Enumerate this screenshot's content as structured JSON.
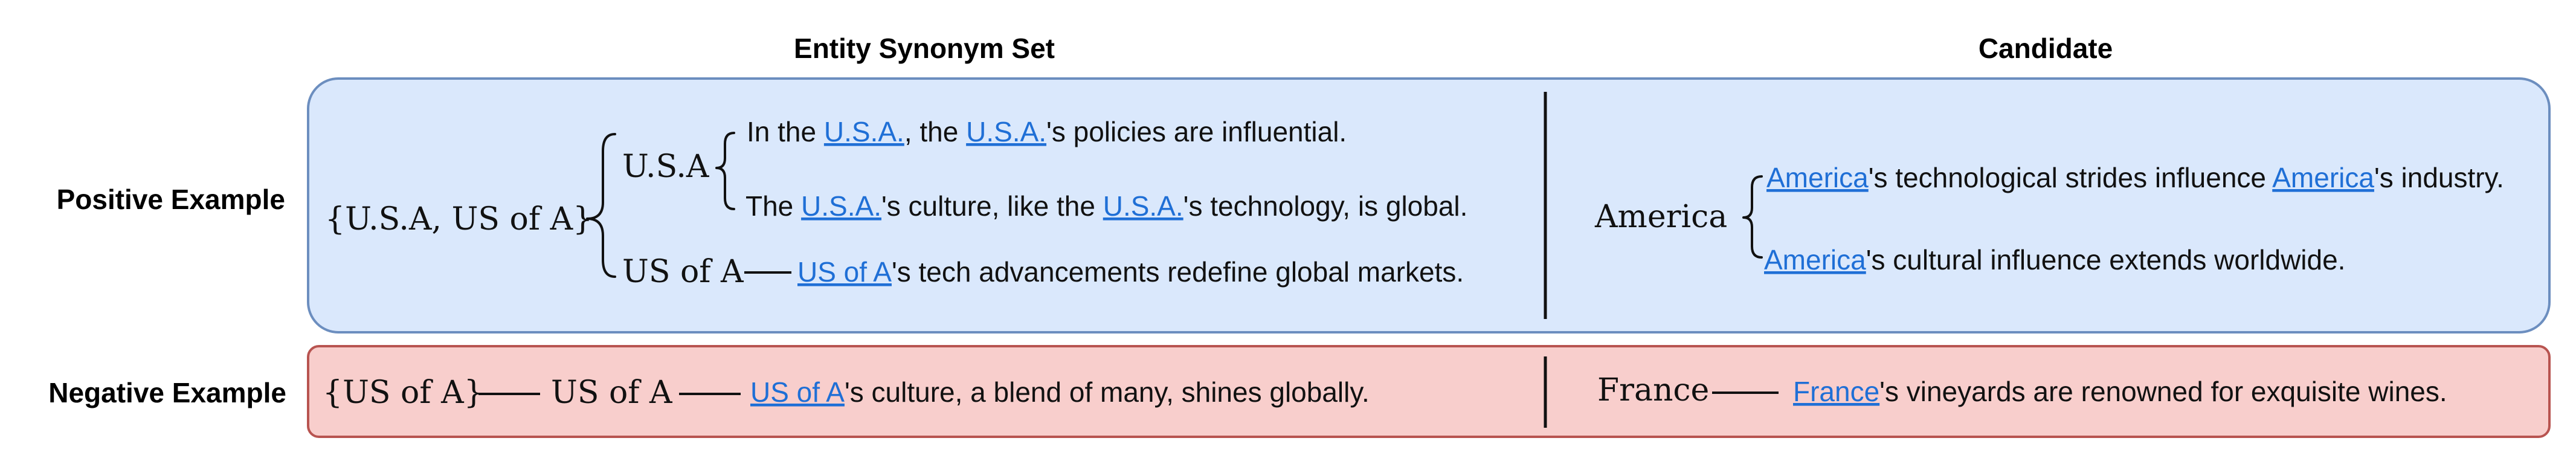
{
  "headers": {
    "synonym_set": "Entity Synonym Set",
    "candidate": "Candidate"
  },
  "positive": {
    "row_label": "Positive Example",
    "set": "{U.S.A, US of A}",
    "entities": {
      "usa": "U.S.A",
      "us_of_a": "US of A"
    },
    "sentences": {
      "s1": {
        "t1": "In the ",
        "l1": "U.S.A.",
        "t2": ", the ",
        "l2": "U.S.A.",
        "t3": "'s policies are influential."
      },
      "s2": {
        "t1": "The ",
        "l1": "U.S.A.",
        "t2": "'s culture, like the ",
        "l2": "U.S.A.",
        "t3": "'s technology, is global."
      },
      "s3": {
        "l1": "US of A",
        "t1": "'s tech advancements redefine global markets."
      }
    },
    "candidate": {
      "entity": "America",
      "c1": {
        "l1": "America",
        "t1": "'s technological strides influence ",
        "l2": "America",
        "t2": "'s industry."
      },
      "c2": {
        "l1": "America",
        "t1": "'s cultural influence extends worldwide."
      }
    }
  },
  "negative": {
    "row_label": "Negative Example",
    "set": "{US of A}",
    "entity": "US of A",
    "sentence": {
      "l1": "US of A",
      "t1": "'s culture, a blend of many, shines globally."
    },
    "candidate": {
      "entity": "France",
      "c1": {
        "l1": "France",
        "t1": "'s vineyards are renowned for exquisite wines."
      }
    }
  },
  "colors": {
    "positive_fill": "#dae8fc",
    "positive_stroke": "#6c8ebf",
    "negative_fill": "#f8cecc",
    "negative_stroke": "#b85450",
    "link": "#1f6fd6"
  }
}
